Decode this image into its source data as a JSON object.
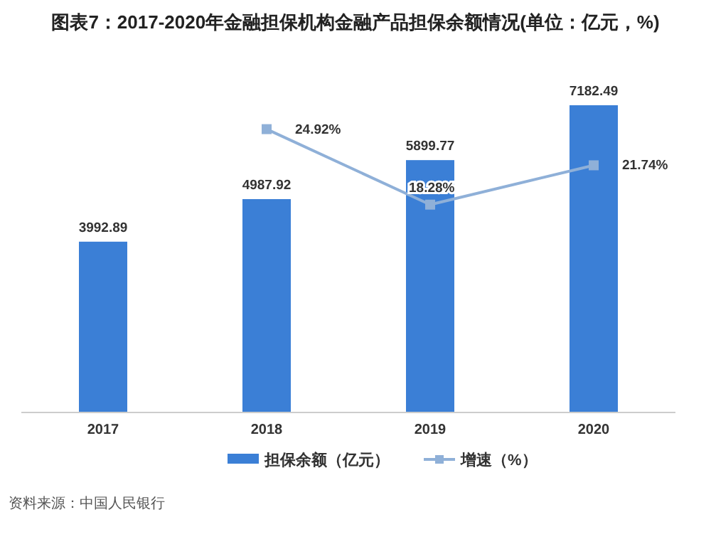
{
  "chart_data": {
    "type": "bar",
    "title": "图表7：2017-2020年金融担保机构金融产品担保余额情况(单位：亿元，%)",
    "categories": [
      "2017",
      "2018",
      "2019",
      "2020"
    ],
    "series": [
      {
        "name": "担保余额（亿元）",
        "color": "#3b7fd6",
        "values": [
          3992.89,
          4987.92,
          5899.77,
          7182.49
        ]
      },
      {
        "name": "增速（%）",
        "type": "line",
        "axis": "y2",
        "color": "#8fb0d8",
        "marker": "square",
        "values": [
          null,
          24.92,
          18.28,
          21.74
        ],
        "value_labels": [
          null,
          "24.92%",
          "18.28%",
          "21.74%"
        ]
      }
    ],
    "tick_labels": "x",
    "data_labels": true,
    "legend": "bottom",
    "annotations": [
      "资料来源：中国人民银行"
    ]
  }
}
